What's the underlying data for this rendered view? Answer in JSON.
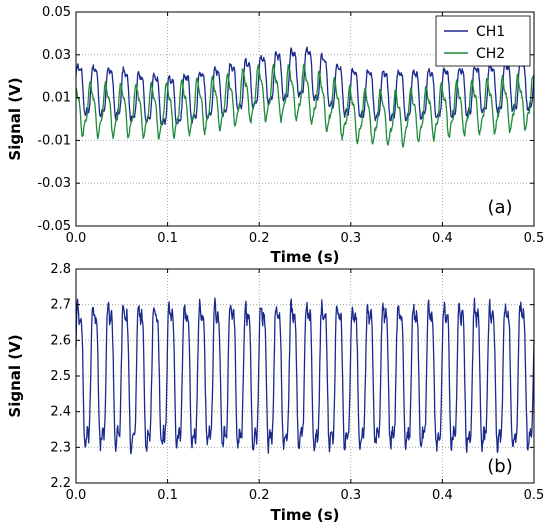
{
  "chart_data": [
    {
      "type": "line",
      "panel_label": "(a)",
      "xlabel": "Time (s)",
      "ylabel": "Signal (V)",
      "xlim": [
        0.0,
        0.5
      ],
      "ylim": [
        -0.05,
        0.05
      ],
      "x_ticks": [
        "0.0",
        "0.1",
        "0.2",
        "0.3",
        "0.4",
        "0.5"
      ],
      "y_ticks": [
        "-0.05",
        "-0.03",
        "-0.01",
        "0.01",
        "0.03",
        "0.05"
      ],
      "grid": true,
      "legend_position": "top-right",
      "series": [
        {
          "name": "CH1",
          "color": "#1a2a8c",
          "x": [
            0.0,
            0.05,
            0.1,
            0.15,
            0.2,
            0.25,
            0.3,
            0.35,
            0.4,
            0.45,
            0.5
          ],
          "y_center": [
            0.014,
            0.012,
            0.008,
            0.012,
            0.018,
            0.022,
            0.012,
            0.011,
            0.012,
            0.014,
            0.016
          ],
          "amplitude": 0.012,
          "frequency_hz": 60
        },
        {
          "name": "CH2",
          "color": "#1e8a3a",
          "x": [
            0.0,
            0.05,
            0.1,
            0.15,
            0.2,
            0.25,
            0.3,
            0.35,
            0.4,
            0.45,
            0.5
          ],
          "y_center": [
            0.005,
            0.004,
            0.004,
            0.007,
            0.012,
            0.012,
            0.002,
            0.0,
            0.004,
            0.006,
            0.008
          ],
          "amplitude": 0.011,
          "frequency_hz": 60
        }
      ]
    },
    {
      "type": "line",
      "panel_label": "(b)",
      "xlabel": "Time (s)",
      "ylabel": "Signal (V)",
      "xlim": [
        0.0,
        0.5
      ],
      "ylim": [
        2.2,
        2.8
      ],
      "x_ticks": [
        "0.0",
        "0.1",
        "0.2",
        "0.3",
        "0.4",
        "0.5"
      ],
      "y_ticks": [
        "2.2",
        "2.3",
        "2.4",
        "2.5",
        "2.6",
        "2.7",
        "2.8"
      ],
      "grid": true,
      "series": [
        {
          "color": "#1a2a8c",
          "x": [
            0.0,
            0.5
          ],
          "y_center": [
            2.5,
            2.5
          ],
          "amplitude": 0.21,
          "frequency_hz": 60
        }
      ]
    }
  ]
}
